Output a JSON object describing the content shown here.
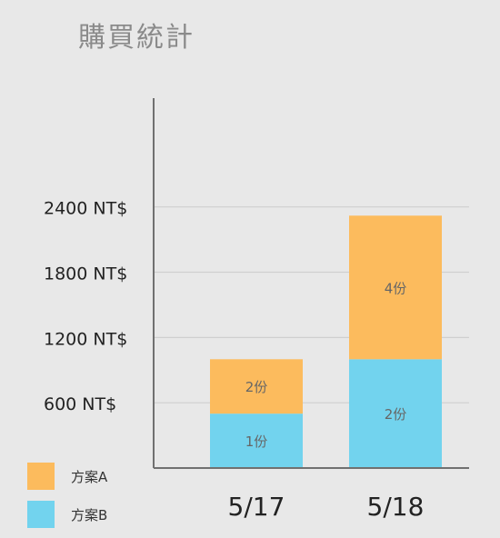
{
  "title": "購買統計",
  "chart_data": {
    "type": "bar",
    "stacked": true,
    "categories": [
      "5/17",
      "5/18"
    ],
    "series": [
      {
        "name": "方案B",
        "color": "#72d3ee",
        "values": [
          500,
          1000
        ],
        "labels": [
          "1份",
          "2份"
        ]
      },
      {
        "name": "方案A",
        "color": "#fcbb5d",
        "values": [
          500,
          1320
        ],
        "labels": [
          "2份",
          "4份"
        ]
      }
    ],
    "yticks": [
      600,
      1200,
      1800,
      2400
    ],
    "ytick_labels": [
      "600 NT$",
      "1200 NT$",
      "1800 NT$",
      "2400 NT$"
    ],
    "ylim": [
      0,
      3400
    ],
    "grid": true,
    "legend_position": "bottom-left"
  },
  "legend": {
    "items": [
      {
        "label": "方案A",
        "color": "#fcbb5d"
      },
      {
        "label": "方案B",
        "color": "#72d3ee"
      }
    ]
  }
}
